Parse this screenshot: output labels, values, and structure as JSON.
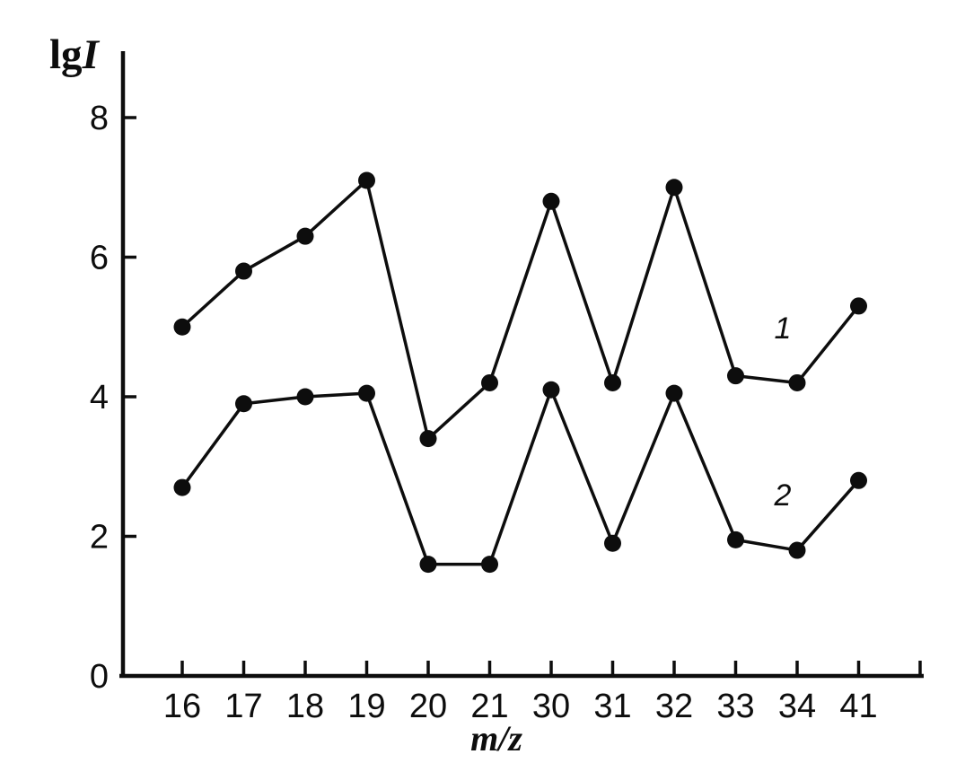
{
  "figure": {
    "background": "#ffffff",
    "ink": "#0d0d0d"
  },
  "chart_data": {
    "type": "line",
    "title": "",
    "ylabel": "lgI",
    "ylabel_parts": {
      "upright": "lg",
      "italic": "I"
    },
    "xlabel": "m/z",
    "categories": [
      "16",
      "17",
      "18",
      "19",
      "20",
      "21",
      "30",
      "31",
      "32",
      "33",
      "34",
      "41"
    ],
    "ylim": [
      0,
      8
    ],
    "yticks": [
      0,
      2,
      4,
      6,
      8
    ],
    "grid": false,
    "marker": "filled-circle",
    "line_color": "#0d0d0d",
    "legend_position": "curve-labels-inline-right",
    "x_axis_end_tick_unlabeled": true,
    "series": [
      {
        "name": "1",
        "values": [
          5.0,
          5.8,
          6.3,
          7.1,
          3.4,
          4.2,
          6.8,
          4.2,
          7.0,
          4.3,
          4.2,
          5.3
        ]
      },
      {
        "name": "2",
        "values": [
          2.7,
          3.9,
          4.0,
          4.05,
          1.6,
          1.6,
          4.1,
          1.9,
          4.05,
          1.95,
          1.8,
          2.8
        ]
      }
    ]
  }
}
